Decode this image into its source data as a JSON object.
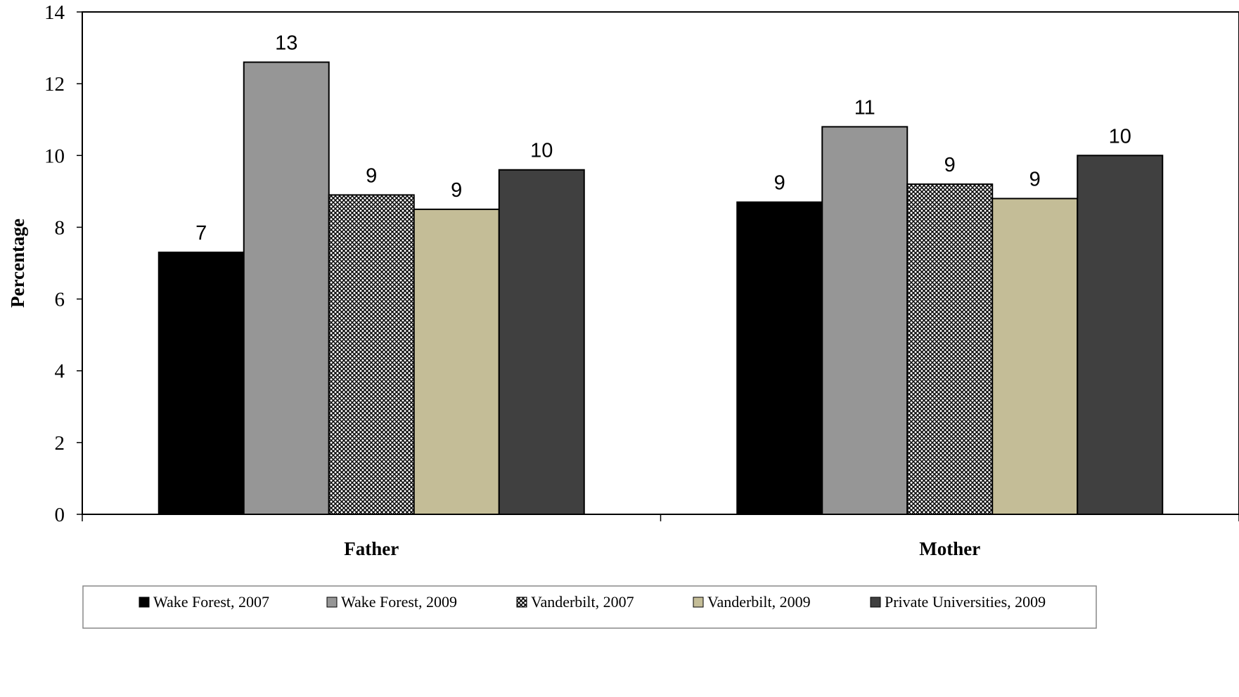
{
  "chart_data": {
    "type": "bar",
    "title": "",
    "xlabel": "",
    "ylabel": "Percentage",
    "ylim": [
      0,
      14
    ],
    "yticks": [
      0,
      2,
      4,
      6,
      8,
      10,
      12,
      14
    ],
    "categories": [
      "Father",
      "Mother"
    ],
    "series": [
      {
        "name": "Wake Forest, 2007",
        "values": [
          7.3,
          8.7
        ],
        "labels": [
          "7",
          "9"
        ],
        "color": "#000000",
        "pattern": "solid"
      },
      {
        "name": "Wake Forest, 2009",
        "values": [
          12.6,
          10.8
        ],
        "labels": [
          "13",
          "11"
        ],
        "color": "#969696",
        "pattern": "solid"
      },
      {
        "name": "Vanderbilt, 2007",
        "values": [
          8.9,
          9.2
        ],
        "labels": [
          "9",
          "9"
        ],
        "color": "#808080",
        "pattern": "crosshatch"
      },
      {
        "name": "Vanderbilt, 2009",
        "values": [
          8.5,
          8.8
        ],
        "labels": [
          "9",
          "9"
        ],
        "color": "#C4BD97",
        "pattern": "solid"
      },
      {
        "name": "Private Universities, 2009",
        "values": [
          9.6,
          10.0
        ],
        "labels": [
          "10",
          "10"
        ],
        "color": "#404040",
        "pattern": "solid"
      }
    ],
    "grid": false,
    "legend_position": "bottom"
  }
}
